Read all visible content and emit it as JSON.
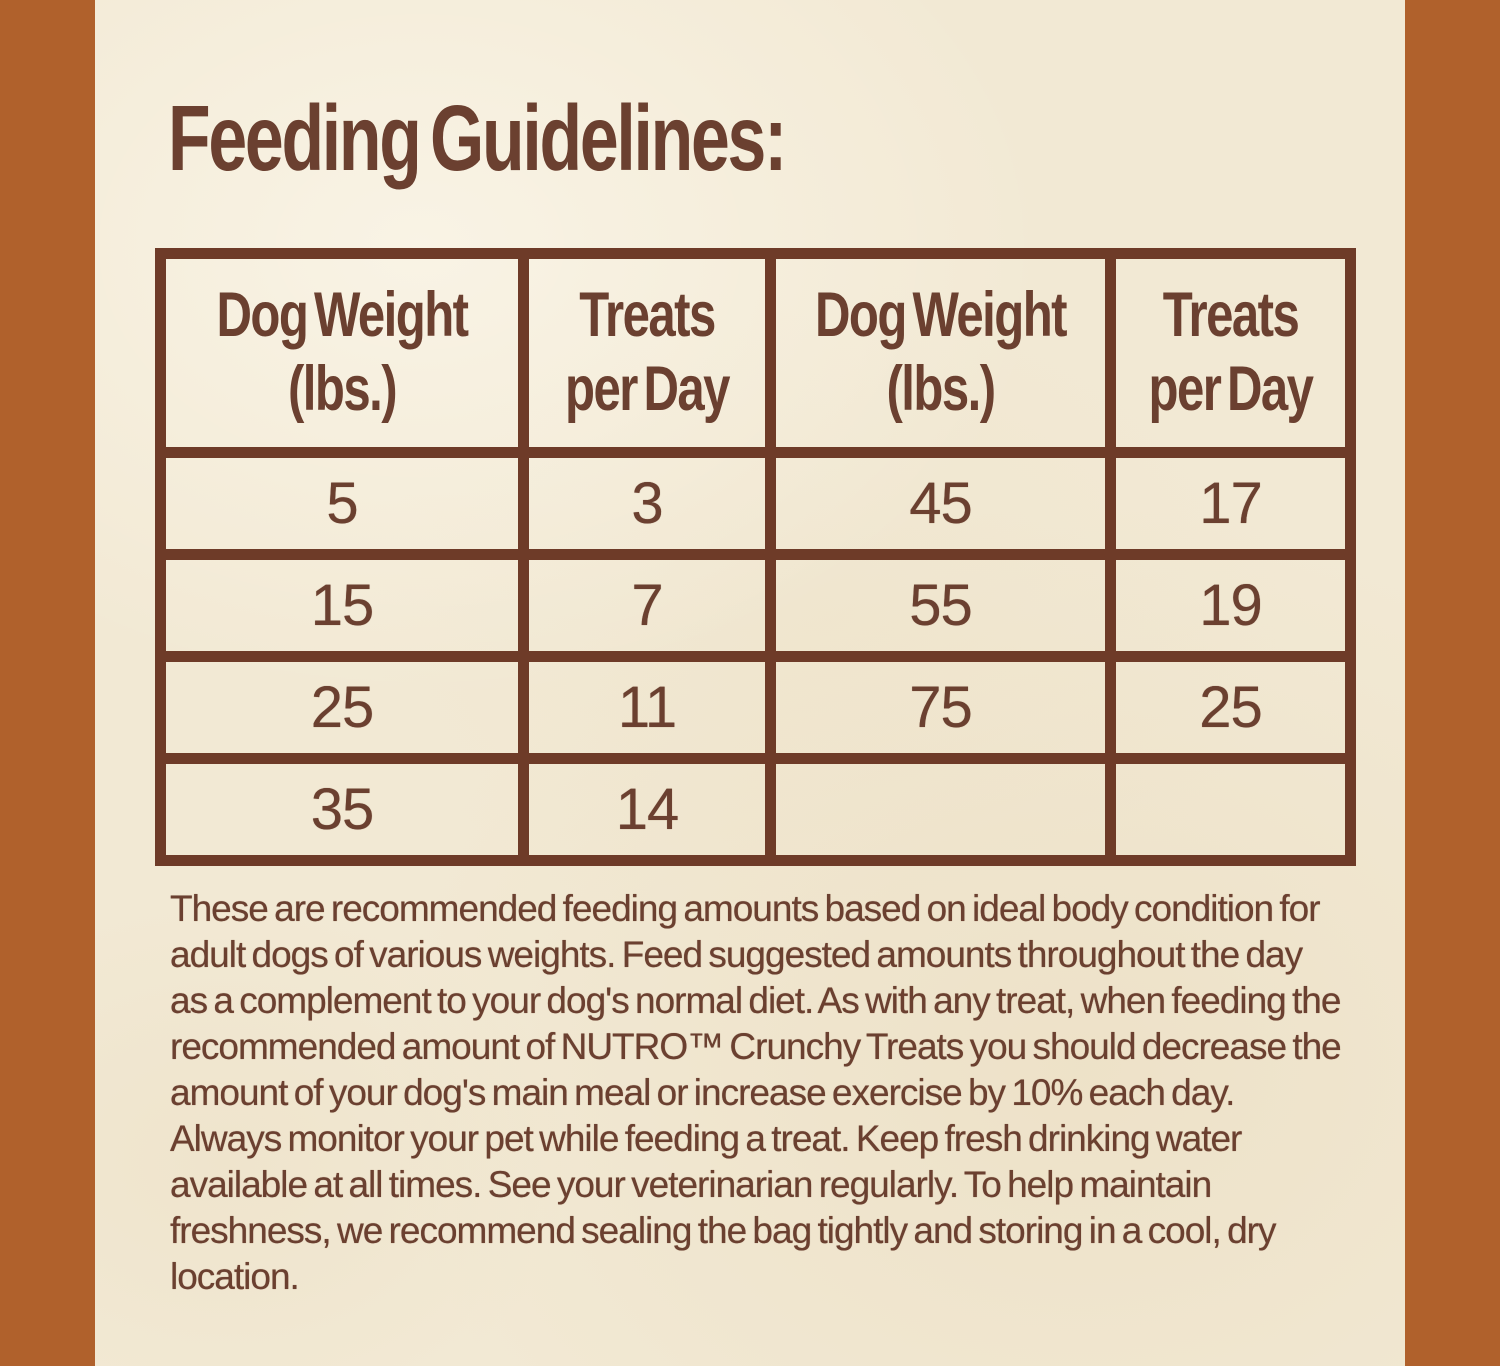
{
  "page": {
    "title": "Feeding Guidelines:"
  },
  "table": {
    "headers": [
      {
        "line1": "Dog Weight",
        "line2": "(lbs.)"
      },
      {
        "line1": "Treats",
        "line2": "per Day"
      },
      {
        "line1": "Dog Weight",
        "line2": "(lbs.)"
      },
      {
        "line1": "Treats",
        "line2": "per Day"
      }
    ],
    "rows": [
      [
        "5",
        "3",
        "45",
        "17"
      ],
      [
        "15",
        "7",
        "55",
        "19"
      ],
      [
        "25",
        "11",
        "75",
        "25"
      ],
      [
        "35",
        "14",
        "",
        ""
      ]
    ]
  },
  "paragraph": "These are recommended feeding amounts based on ideal body condition for adult dogs of various weights. Feed suggested amounts throughout the day as a complement to your dog's normal diet. As with any treat, when feeding the recommended amount of NUTRO™ Crunchy Treats you should decrease the amount of your dog's main meal or increase exercise by 10% each day. Always monitor your pet while feeding a treat. Keep fresh drinking water available at all times. See your veterinarian regularly. To help maintain freshness, we recommend sealing the bag tightly and storing in a cool, dry location.",
  "colors": {
    "stripe": "#b0612c",
    "paper": "#f2e9d4",
    "text_brown": "#6b4030",
    "border_brown": "#6e3b28"
  }
}
